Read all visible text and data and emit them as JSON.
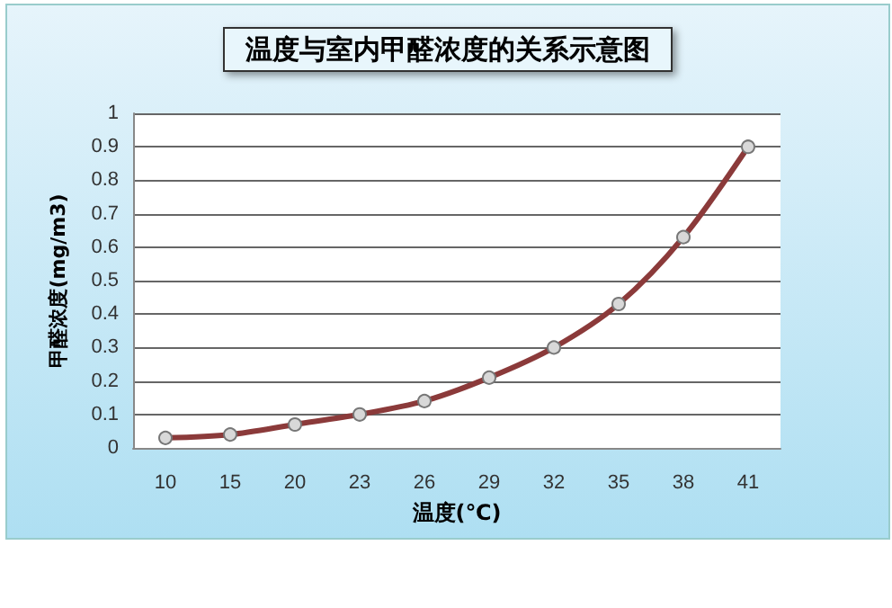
{
  "chart_data": {
    "type": "line",
    "title": "温度与室内甲醛浓度的关系示意图",
    "xlabel": "温度(℃)",
    "ylabel": "甲醛浓度(mg/m3)",
    "categories": [
      "10",
      "15",
      "20",
      "23",
      "26",
      "29",
      "32",
      "35",
      "38",
      "41"
    ],
    "series": [
      {
        "color": "#8b3a3a",
        "values": [
          0.03,
          0.04,
          0.07,
          0.1,
          0.14,
          0.21,
          0.3,
          0.43,
          0.63,
          0.9
        ]
      }
    ],
    "ylim": [
      0,
      1
    ],
    "yticks": [
      0,
      0.1,
      0.2,
      0.3,
      0.4,
      0.5,
      0.6,
      0.7,
      0.8,
      0.9,
      1
    ],
    "grid": "y",
    "marker": "circle",
    "line_style": "solid"
  }
}
